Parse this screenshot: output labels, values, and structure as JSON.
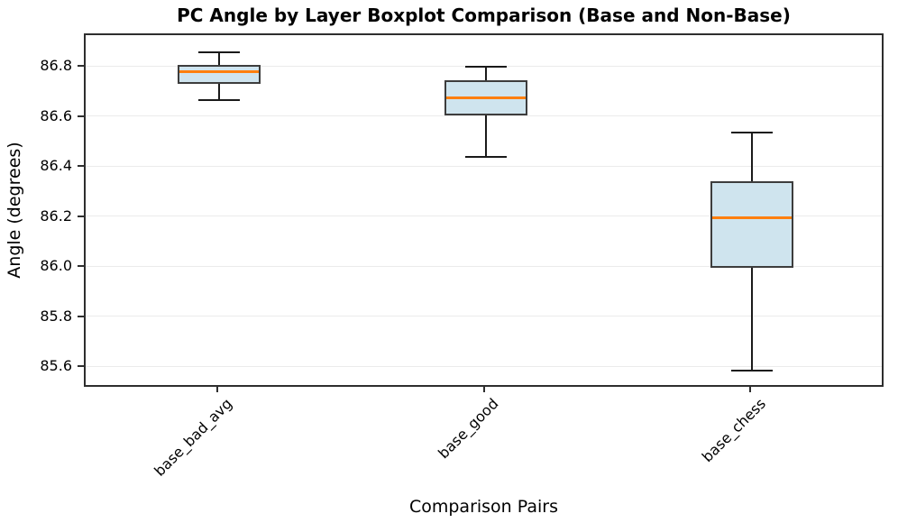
{
  "chart_data": {
    "type": "boxplot",
    "title": "PC Angle by Layer Boxplot Comparison (Base and Non-Base)",
    "xlabel": "Comparison Pairs",
    "ylabel": "Angle (degrees)",
    "categories": [
      "base_bad_avg",
      "base_good",
      "base_chess"
    ],
    "boxes": [
      {
        "label": "base_bad_avg",
        "whisker_low": 86.67,
        "q1": 86.735,
        "median": 86.785,
        "q3": 86.81,
        "whisker_high": 86.86
      },
      {
        "label": "base_good",
        "whisker_low": 86.445,
        "q1": 86.61,
        "median": 86.68,
        "q3": 86.75,
        "whisker_high": 86.805
      },
      {
        "label": "base_chess",
        "whisker_low": 85.59,
        "q1": 86.0,
        "median": 86.2,
        "q3": 86.345,
        "whisker_high": 86.54
      }
    ],
    "yticks": [
      86.8,
      86.6,
      86.4,
      86.2,
      86.0,
      85.8,
      85.6
    ],
    "ylim": [
      85.518,
      86.93
    ],
    "grid": true,
    "legend": null,
    "x_tick_rotation": 45,
    "colors": {
      "box_fill": "#cfe4ee",
      "box_edge": "#3d3d3d",
      "median": "#ff7f0e",
      "whisker": "#1a1a1a",
      "grid": "#ebebeb",
      "spine": "#2e2e2e",
      "background": "#ffffff",
      "text": "#000000"
    }
  }
}
